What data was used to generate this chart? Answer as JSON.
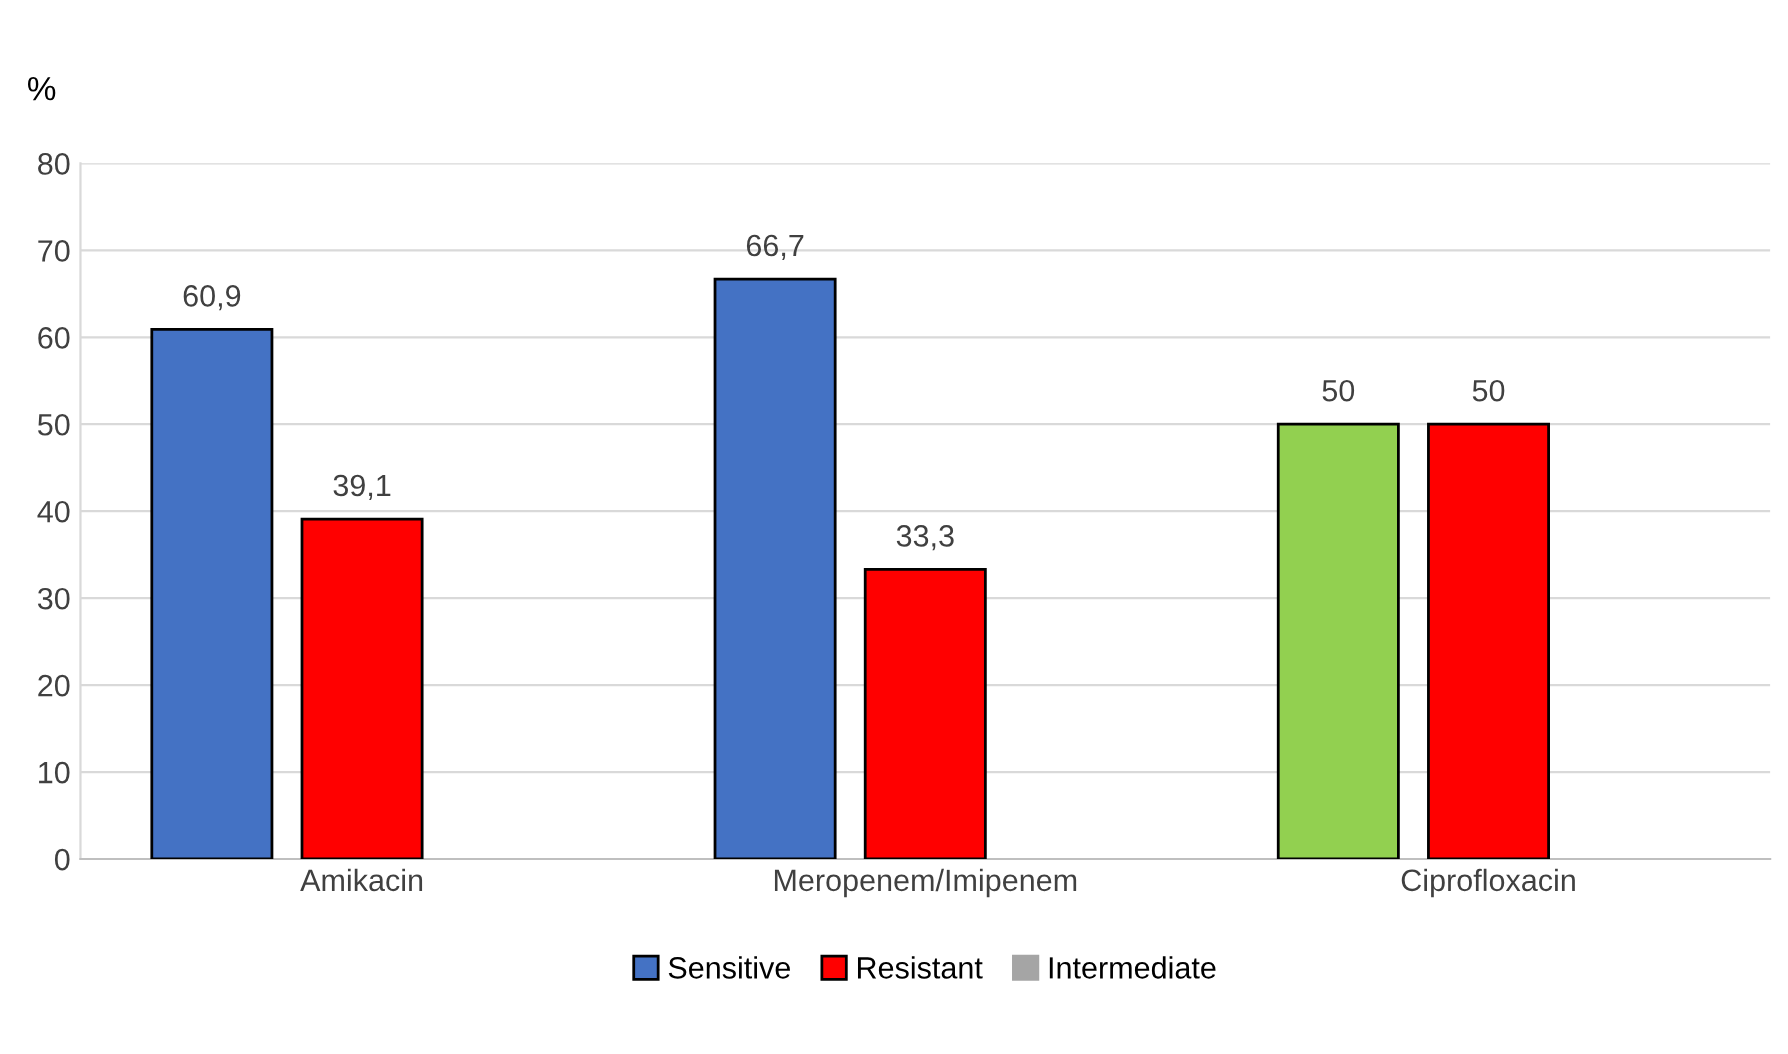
{
  "chart_data": {
    "type": "bar",
    "ylabel": "%",
    "categories": [
      "Amikacin",
      "Meropenem/Imipenem",
      "Ciprofloxacin"
    ],
    "series": [
      {
        "name": "Sensitive",
        "color": "#4472c4",
        "colors": [
          "#4472c4",
          "#4472c4",
          "#92d050"
        ],
        "values": [
          60.9,
          66.7,
          50
        ],
        "value_labels": [
          "60,9",
          "66,7",
          "50"
        ]
      },
      {
        "name": "Resistant",
        "color": "#ff0000",
        "values": [
          39.1,
          33.3,
          50
        ],
        "value_labels": [
          "39,1",
          "33,3",
          "50"
        ]
      },
      {
        "name": "Intermediate",
        "color": "#a5a5a5",
        "values": [
          null,
          null,
          null
        ]
      }
    ],
    "ylim": [
      0,
      80
    ],
    "yticks": [
      0,
      10,
      20,
      30,
      40,
      50,
      60,
      70,
      80
    ],
    "grid": "y",
    "legend": "bottom"
  }
}
